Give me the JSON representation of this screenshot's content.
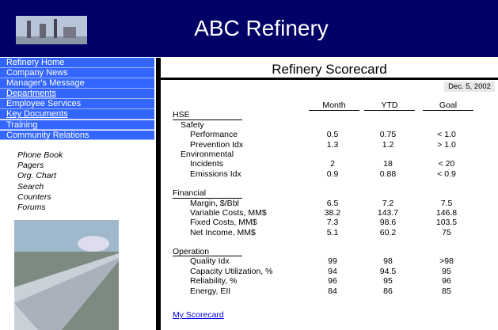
{
  "header": {
    "title": "ABC Refinery"
  },
  "nav": [
    "Refinery Home",
    "Company News",
    "Manager's Message",
    "Departments",
    "Employee Services",
    "Key Documents",
    "Training",
    "Community Relations"
  ],
  "links": [
    "Phone Book",
    "Pagers",
    "Org. Chart",
    "Search",
    "Counters",
    "Forums"
  ],
  "scorecard": {
    "title": "Refinery Scorecard",
    "date": "Dec. 5, 2002",
    "columns": [
      "Month",
      "YTD",
      "Goal"
    ],
    "sections": [
      {
        "title": "HSE",
        "rows": [
          {
            "label": "Safety"
          },
          {
            "label": "Performance",
            "values": [
              0.5,
              0.75,
              "< 1.0"
            ]
          },
          {
            "label": "Prevention Idx",
            "values": [
              1.3,
              1.2,
              "> 1.0"
            ]
          },
          {
            "label": "Environmental"
          },
          {
            "label": "Incidents",
            "values": [
              2,
              18,
              "< 20"
            ]
          },
          {
            "label": "Emissions Idx",
            "values": [
              0.9,
              0.88,
              "< 0.9"
            ]
          }
        ]
      },
      {
        "title": "Financial",
        "rows": [
          {
            "label": "Margin, $/Bbl",
            "values": [
              6.5,
              7.2,
              7.5
            ]
          },
          {
            "label": "Variable Costs, MM$",
            "values": [
              38.2,
              143.7,
              146.8
            ]
          },
          {
            "label": "Fixed Costs, MM$",
            "values": [
              7.3,
              98.6,
              103.5
            ]
          },
          {
            "label": "Net Income, MM$",
            "values": [
              5.1,
              60.2,
              75
            ]
          }
        ]
      },
      {
        "title": "Operation",
        "rows": [
          {
            "label": "Quality Idx",
            "values": [
              99,
              98,
              ">98"
            ]
          },
          {
            "label": "Capacity Utilization, %",
            "values": [
              94,
              94.5,
              95
            ]
          },
          {
            "label": "Reliability, %",
            "values": [
              96,
              95,
              96
            ]
          },
          {
            "label": "Energy, EII",
            "values": [
              84,
              86,
              85
            ]
          }
        ]
      }
    ],
    "link": "My Scorecard"
  }
}
